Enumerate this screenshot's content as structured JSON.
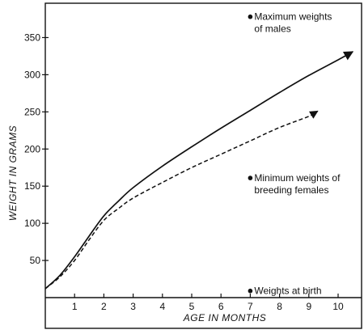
{
  "chart_data": {
    "type": "line",
    "xlabel": "AGE IN MONTHS",
    "ylabel": "WEIGHT IN GRAMS",
    "xlim": [
      -1,
      10.6
    ],
    "ylim": [
      0,
      395
    ],
    "x_ticks": [
      1,
      2,
      3,
      4,
      5,
      6,
      7,
      8,
      9,
      10
    ],
    "y_ticks": [
      50,
      100,
      150,
      200,
      250,
      300,
      350
    ],
    "grid": false,
    "series": [
      {
        "style": "solid",
        "arrow": true,
        "points": [
          [
            0,
            12
          ],
          [
            0.5,
            30
          ],
          [
            1,
            55
          ],
          [
            1.5,
            83
          ],
          [
            2,
            110
          ],
          [
            2.5,
            130
          ],
          [
            3,
            148
          ],
          [
            4,
            177
          ],
          [
            5,
            203
          ],
          [
            6,
            228
          ],
          [
            7,
            252
          ],
          [
            8,
            276
          ],
          [
            9,
            299
          ],
          [
            10,
            320
          ],
          [
            10.5,
            331
          ]
        ]
      },
      {
        "style": "dashed",
        "arrow": true,
        "points": [
          [
            0,
            12
          ],
          [
            0.5,
            28
          ],
          [
            1,
            50
          ],
          [
            1.5,
            78
          ],
          [
            2,
            104
          ],
          [
            2.5,
            120
          ],
          [
            3,
            134
          ],
          [
            4,
            155
          ],
          [
            5,
            175
          ],
          [
            6,
            193
          ],
          [
            7,
            211
          ],
          [
            8,
            229
          ],
          [
            9,
            244
          ],
          [
            9.3,
            251
          ]
        ]
      }
    ],
    "annotations": [
      {
        "lines": [
          "Maximum weights",
          "of males"
        ],
        "x": 7,
        "y": 378
      },
      {
        "lines": [
          "Minimum weights of",
          "breeding females"
        ],
        "x": 7,
        "y": 161
      },
      {
        "lines": [
          "Weights at birth"
        ],
        "x": 7,
        "y": 9
      }
    ]
  }
}
